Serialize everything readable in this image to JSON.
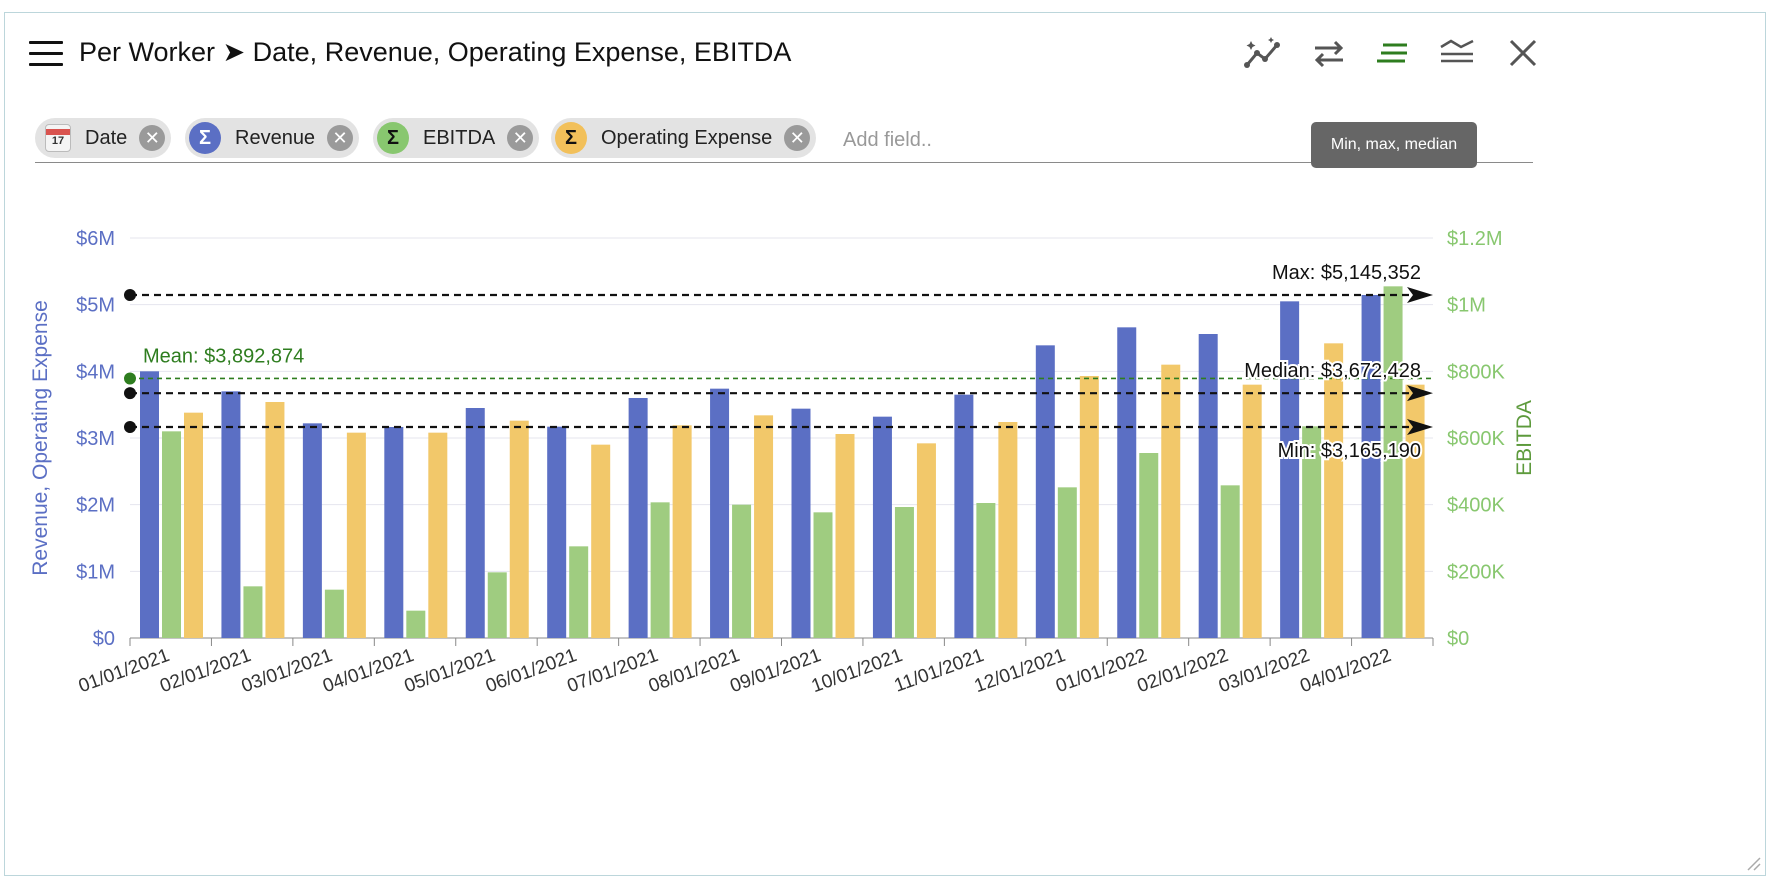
{
  "header": {
    "title": "Per Worker ➤ Date, Revenue, Operating Expense, EBITDA",
    "tools": [
      "trend-icon",
      "swap-icon",
      "min-max-median-icon",
      "layers-icon",
      "close-icon"
    ]
  },
  "fields": [
    {
      "label": "Date",
      "icon": "calendar-icon",
      "glyph": "17",
      "color": "#f0f0f0"
    },
    {
      "label": "Revenue",
      "icon": "sigma-icon",
      "glyph": "Σ",
      "color": "#5b6fc4"
    },
    {
      "label": "EBITDA",
      "icon": "sigma-icon",
      "glyph": "Σ",
      "color": "#88c76f"
    },
    {
      "label": "Operating Expense",
      "icon": "sigma-icon",
      "glyph": "Σ",
      "color": "#f2c05a"
    }
  ],
  "add_field_placeholder": "Add field..",
  "tooltip": "Min, max, median",
  "chart_data": {
    "type": "bar",
    "categories": [
      "01/01/2021",
      "02/01/2021",
      "03/01/2021",
      "04/01/2021",
      "05/01/2021",
      "06/01/2021",
      "07/01/2021",
      "08/01/2021",
      "09/01/2021",
      "10/01/2021",
      "11/01/2021",
      "12/01/2021",
      "01/01/2022",
      "02/01/2022",
      "03/01/2022",
      "04/01/2022"
    ],
    "series": [
      {
        "name": "Revenue",
        "axis": "left",
        "color": "#5b6fc4",
        "values": [
          4000000,
          3700000,
          3220000,
          3165190,
          3450000,
          3170000,
          3600000,
          3740000,
          3440000,
          3320000,
          3650000,
          4390000,
          4660000,
          4560000,
          5050000,
          5145352
        ]
      },
      {
        "name": "EBITDA",
        "axis": "right",
        "color": "#9fcc80",
        "values": [
          620000,
          155000,
          145000,
          82000,
          197000,
          275000,
          407000,
          400000,
          377000,
          393000,
          405000,
          452000,
          555000,
          458000,
          635000,
          1055000
        ]
      },
      {
        "name": "Operating Expense",
        "axis": "left",
        "color": "#f2c86a",
        "values": [
          3380000,
          3540000,
          3080000,
          3080000,
          3260000,
          2900000,
          3190000,
          3340000,
          3060000,
          2920000,
          3240000,
          3930000,
          4100000,
          3800000,
          4420000,
          3800000
        ]
      }
    ],
    "left_axis": {
      "label": "Revenue, Operating Expense",
      "ylim": [
        0,
        6000000
      ],
      "ticks": [
        "$0",
        "$1M",
        "$2M",
        "$3M",
        "$4M",
        "$5M",
        "$6M"
      ],
      "color": "#5b6fc4"
    },
    "right_axis": {
      "label": "EBITDA",
      "ylim": [
        0,
        1200000
      ],
      "ticks": [
        "$0",
        "$200K",
        "$400K",
        "$600K",
        "$800K",
        "$1M",
        "$1.2M"
      ],
      "color": "#88c76f",
      "label_color": "#5d9a3c"
    },
    "reference_lines": [
      {
        "label": "Max: $5,145,352",
        "value": 5145352,
        "color": "#111111"
      },
      {
        "label": "Mean: $3,892,874",
        "value": 3892874,
        "color": "#2e7d1f"
      },
      {
        "label": "Median: $3,672,428",
        "value": 3672428,
        "color": "#111111"
      },
      {
        "label": "Min: $3,165,190",
        "value": 3165190,
        "color": "#111111"
      }
    ],
    "grid": true
  }
}
